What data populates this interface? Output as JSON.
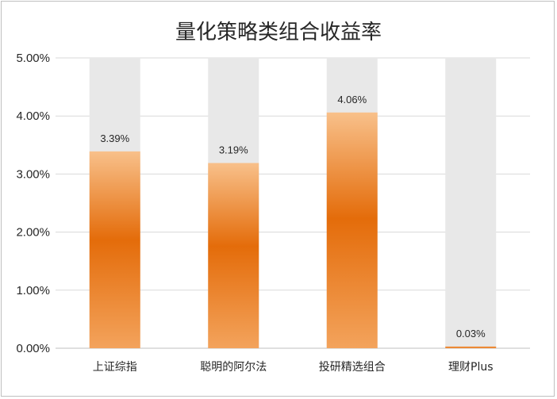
{
  "chart_data": {
    "type": "bar",
    "title": "量化策略类组合收益率",
    "categories": [
      "上证综指",
      "聪明的阿尔法",
      "投研精选组合",
      "理财Plus"
    ],
    "values": [
      3.39,
      3.19,
      4.06,
      0.03
    ],
    "value_labels": [
      "3.39%",
      "3.19%",
      "4.06%",
      "0.03%"
    ],
    "background_bar_value": 5.0,
    "y_ticks": [
      "0.00%",
      "1.00%",
      "2.00%",
      "3.00%",
      "4.00%",
      "5.00%"
    ],
    "ylim": [
      0,
      5
    ],
    "grid": true,
    "legend": "none",
    "colors": {
      "bar_top": "#f8c08a",
      "bar_mid": "#e46c0a",
      "bar_bottom": "#f3a35c",
      "background_bar": "#e8e8e8",
      "grid": "#d9d9d9"
    }
  }
}
